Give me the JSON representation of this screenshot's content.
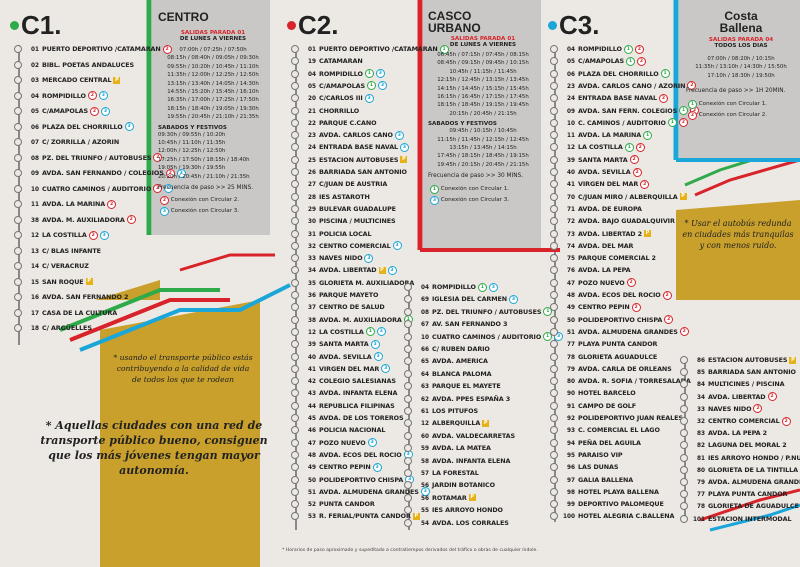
{
  "c1": {
    "title": "C1.",
    "color": "#2eaa4a",
    "stops": [
      {
        "n": "01",
        "name": "PUERTO DEPORTIVO /CATAMARAN",
        "b": [
          "2"
        ]
      },
      {
        "n": "02",
        "name": "BIBL. POETAS ANDALUCES",
        "b": []
      },
      {
        "n": "03",
        "name": "MERCADO CENTRAL",
        "b": [
          "P"
        ]
      },
      {
        "n": "04",
        "name": "ROMPIDILLO",
        "b": [
          "2",
          "3"
        ]
      },
      {
        "n": "05",
        "name": "C/AMAPOLAS",
        "b": [
          "2",
          "3"
        ]
      },
      {
        "n": "06",
        "name": "PLAZA DEL CHORRILLO",
        "b": [
          "3"
        ]
      },
      {
        "n": "07",
        "name": "C/ ZORRILLA / AZORIN",
        "b": []
      },
      {
        "n": "08",
        "name": "PZ. DEL TRIUNFO / AUTOBUSES",
        "b": [
          "2"
        ]
      },
      {
        "n": "09",
        "name": "AVDA. SAN FERNANDO / COLEGIOS",
        "b": [
          "2",
          "3"
        ]
      },
      {
        "n": "10",
        "name": "CUATRO CAMINOS / AUDITORIO",
        "b": [
          "2",
          "3"
        ]
      },
      {
        "n": "11",
        "name": "AVDA. LA MARINA",
        "b": [
          "2"
        ]
      },
      {
        "n": "38",
        "name": "AVDA. M. AUXILIADORA",
        "b": [
          "2"
        ]
      },
      {
        "n": "12",
        "name": "LA COSTILLA",
        "b": [
          "2",
          "3"
        ]
      },
      {
        "n": "13",
        "name": "C/ BLAS INFANTE",
        "b": []
      },
      {
        "n": "14",
        "name": "C/ VERACRUZ",
        "b": []
      },
      {
        "n": "15",
        "name": "SAN ROQUE",
        "b": [
          "P"
        ]
      },
      {
        "n": "16",
        "name": "AVDA. SAN FERNANDO 2",
        "b": []
      },
      {
        "n": "17",
        "name": "CASA DE LA CULTURA",
        "b": []
      },
      {
        "n": "18",
        "name": "C/ ARGÜELLES",
        "b": []
      }
    ]
  },
  "panel1": {
    "title": "CENTRO",
    "sub1": "SALIDAS PARADA 01",
    "sub2": "DE LUNES A VIERNES",
    "weekday": [
      "07:00h / 07:25h / 07:50h",
      "08:15h / 08:40h / 09:05h / 09:30h",
      "09:55h / 10:20h / 10:45h / 11:10h",
      "11:35h / 12:00h / 12:25h / 12:50h",
      "13:15h / 13:40h / 14:05h / 14:30h",
      "14:55h / 15:20h / 15:45h / 16:10h",
      "16:35h / 17:00h / 17:25h / 17:50h",
      "18:15h / 18:40h / 19:05h / 19:30h",
      "19:55h / 20:45h / 21:10h / 21:35h"
    ],
    "sub3": "SABADOS Y FESTIVOS",
    "weekend": [
      "09:30h / 09:55h / 10:20h",
      "10:45h / 11:10h / 11:35h",
      "12:00h / 12:25h / 12:50h",
      "17:25h / 17:50h / 18:15h / 18:40h",
      "19:05h / 19:30h / 19:55h",
      "20:20h / 20:45h / 21:10h / 21:35h"
    ],
    "freq": "Frecuencia de paso >> 25 MINS.",
    "conn_a": "Conexión con Circular 2.",
    "conn_b": "Conexión con Circular 3."
  },
  "c2": {
    "title": "C2.",
    "color": "#d8232a",
    "stops_left": [
      {
        "n": "01",
        "name": "PUERTO DEPORTIVO /CATAMARAN",
        "b": [
          "1"
        ]
      },
      {
        "n": "19",
        "name": "CATAMARAN",
        "b": []
      },
      {
        "n": "04",
        "name": "ROMPIDILLO",
        "b": [
          "1",
          "3"
        ]
      },
      {
        "n": "05",
        "name": "C/AMAPOLAS",
        "b": [
          "1",
          "3"
        ]
      },
      {
        "n": "20",
        "name": "C/CARLOS III",
        "b": [
          "3"
        ]
      },
      {
        "n": "21",
        "name": "CHORRILLO",
        "b": []
      },
      {
        "n": "22",
        "name": "PARQUE C.CANO",
        "b": []
      },
      {
        "n": "23",
        "name": "AVDA. CARLOS CANO",
        "b": [
          "3"
        ]
      },
      {
        "n": "24",
        "name": "ENTRADA BASE NAVAL",
        "b": [
          "3"
        ]
      },
      {
        "n": "25",
        "name": "ESTACION AUTOBUSES",
        "b": [
          "P"
        ]
      },
      {
        "n": "26",
        "name": "BARRIADA SAN ANTONIO",
        "b": []
      },
      {
        "n": "27",
        "name": "C/JUAN DE AUSTRIA",
        "b": []
      },
      {
        "n": "28",
        "name": "IES ASTAROTH",
        "b": []
      },
      {
        "n": "29",
        "name": "BULEVAR GUADALUPE",
        "b": []
      },
      {
        "n": "30",
        "name": "PISCINA / MULTICINES",
        "b": []
      },
      {
        "n": "31",
        "name": "POLICIA LOCAL",
        "b": []
      },
      {
        "n": "32",
        "name": "CENTRO COMERCIAL",
        "b": [
          "3"
        ]
      },
      {
        "n": "33",
        "name": "NAVES NIDO",
        "b": [
          "3"
        ]
      },
      {
        "n": "34",
        "name": "AVDA. LIBERTAD",
        "b": [
          "P",
          "3"
        ]
      },
      {
        "n": "35",
        "name": "GLORIETA M. AUXILIADORA",
        "b": []
      },
      {
        "n": "36",
        "name": "PARQUE MAYETO",
        "b": []
      },
      {
        "n": "37",
        "name": "CENTRO DE SALUD",
        "b": []
      },
      {
        "n": "38",
        "name": "AVDA. M. AUXILIADORA",
        "b": [
          "1"
        ]
      },
      {
        "n": "12",
        "name": "LA COSTILLA",
        "b": [
          "1",
          "3"
        ]
      },
      {
        "n": "39",
        "name": "SANTA MARTA",
        "b": [
          "3"
        ]
      },
      {
        "n": "40",
        "name": "AVDA. SEVILLA",
        "b": [
          "3"
        ]
      },
      {
        "n": "41",
        "name": "VIRGEN DEL MAR",
        "b": [
          "3"
        ]
      },
      {
        "n": "42",
        "name": "COLEGIO SALESIANAS",
        "b": []
      },
      {
        "n": "43",
        "name": "AVDA. INFANTA ELENA",
        "b": []
      },
      {
        "n": "44",
        "name": "REPUBLICA FILIPINAS",
        "b": []
      },
      {
        "n": "45",
        "name": "AVDA. DE LOS TOREROS",
        "b": []
      },
      {
        "n": "46",
        "name": "POLICIA NACIONAL",
        "b": []
      },
      {
        "n": "47",
        "name": "POZO NUEVO",
        "b": [
          "3"
        ]
      },
      {
        "n": "48",
        "name": "AVDA. ECOS DEL ROCIO",
        "b": [
          "3"
        ]
      },
      {
        "n": "49",
        "name": "CENTRO PEPIN",
        "b": [
          "3"
        ]
      },
      {
        "n": "50",
        "name": "POLIDEPORTIVO CHISPA",
        "b": [
          "3"
        ]
      },
      {
        "n": "51",
        "name": "AVDA. ALMUDENA GRANDES",
        "b": [
          "3"
        ]
      },
      {
        "n": "52",
        "name": "PUNTA CANDOR",
        "b": []
      },
      {
        "n": "53",
        "name": "R. FERIAL/PUNTA CANDOR",
        "b": [
          "P"
        ]
      }
    ],
    "stops_right": [
      {
        "n": "04",
        "name": "ROMPIDILLO",
        "b": [
          "1",
          "3"
        ]
      },
      {
        "n": "69",
        "name": "IGLESIA DEL CARMEN",
        "b": [
          "3"
        ]
      },
      {
        "n": "08",
        "name": "PZ. DEL TRIUNFO / AUTOBUSES",
        "b": [
          "1"
        ]
      },
      {
        "n": "67",
        "name": "AV. SAN FERNANDO 3",
        "b": []
      },
      {
        "n": "10",
        "name": "CUATRO CAMINOS / AUDITORIO",
        "b": [
          "1",
          "3"
        ]
      },
      {
        "n": "66",
        "name": "C/ RUBEN DARIO",
        "b": []
      },
      {
        "n": "65",
        "name": "AVDA. AMERICA",
        "b": []
      },
      {
        "n": "64",
        "name": "BLANCA PALOMA",
        "b": []
      },
      {
        "n": "63",
        "name": "PARQUE EL MAYETE",
        "b": []
      },
      {
        "n": "62",
        "name": "AVDA. PPES ESPAÑA 3",
        "b": []
      },
      {
        "n": "61",
        "name": "LOS PITUFOS",
        "b": []
      },
      {
        "n": "12",
        "name": "ALBERQUILLA",
        "b": [
          "P"
        ]
      },
      {
        "n": "60",
        "name": "AVDA. VALDECARRETAS",
        "b": []
      },
      {
        "n": "59",
        "name": "AVDA. LA MATEA",
        "b": []
      },
      {
        "n": "58",
        "name": "AVDA. INFANTA ELENA",
        "b": []
      },
      {
        "n": "57",
        "name": "LA FORESTAL",
        "b": []
      },
      {
        "n": "56",
        "name": "JARDIN BOTANICO",
        "b": []
      },
      {
        "n": "56",
        "name": "ROTAMAR",
        "b": [
          "P"
        ]
      },
      {
        "n": "55",
        "name": "IES ARROYO HONDO",
        "b": []
      },
      {
        "n": "54",
        "name": "AVDA. LOS CORRALES",
        "b": []
      }
    ]
  },
  "panel2": {
    "title1": "CASCO",
    "title2": "URBANO",
    "sub1": "SALIDAS PARADA 01",
    "sub2": "DE LUNES A VIERNES",
    "weekday": [
      "06:45h / 07:15h / 07:45h / 08:15h",
      "08:45h / 09:15h / 09:45h / 10:15h",
      "10:45h / 11:15h / 11:45h",
      "12:15h / 12:45h / 13:15h / 13:45h",
      "14:15h / 14:45h / 15:15h / 15:45h",
      "16:15h / 16:45h / 17:15h / 17:45h",
      "18:15h / 18:45h / 19:15h / 19:45h",
      "20:15h / 20:45h / 21:15h"
    ],
    "sub3": "SABADOS Y FESTIVOS",
    "weekend": [
      "09:45h / 10:15h / 10:45h",
      "11:15h / 11:45h / 12:15h / 12:45h",
      "13:15h / 13:45h / 14:15h",
      "17:45h / 18:15h / 18:45h / 19:15h",
      "19:45h / 20:15h / 20:45h / 21:15h"
    ],
    "freq": "Frecuencia de paso >> 30 MINS.",
    "conn_a": "Conexión con Circular 1.",
    "conn_b": "Conexión con Circular 3."
  },
  "c3": {
    "title": "C3.",
    "color": "#1aa6d8",
    "stops_left": [
      {
        "n": "04",
        "name": "ROMPIDILLO",
        "b": [
          "1",
          "2"
        ]
      },
      {
        "n": "05",
        "name": "C/AMAPOLAS",
        "b": [
          "1",
          "2"
        ]
      },
      {
        "n": "06",
        "name": "PLAZA DEL CHORRILLO",
        "b": [
          "1"
        ]
      },
      {
        "n": "23",
        "name": "AVDA. CARLOS CANO / AZORIN",
        "b": [
          "2"
        ]
      },
      {
        "n": "24",
        "name": "ENTRADA BASE NAVAL",
        "b": [
          "2"
        ]
      },
      {
        "n": "09",
        "name": "AVDA. SAN FERN. COLEGIOS",
        "b": [
          "1",
          "2"
        ]
      },
      {
        "n": "10",
        "name": "C. CAMINOS / AUDITORIO",
        "b": [
          "1",
          "2"
        ]
      },
      {
        "n": "11",
        "name": "AVDA. LA MARINA",
        "b": [
          "1"
        ]
      },
      {
        "n": "12",
        "name": "LA COSTILLA",
        "b": [
          "1",
          "2"
        ]
      },
      {
        "n": "39",
        "name": "SANTA MARTA",
        "b": [
          "2"
        ]
      },
      {
        "n": "40",
        "name": "AVDA. SEVILLA",
        "b": [
          "2"
        ]
      },
      {
        "n": "41",
        "name": "VIRGEN DEL MAR",
        "b": [
          "2"
        ]
      },
      {
        "n": "70",
        "name": "C/JUAN MIRO / ALBERQUILLA",
        "b": [
          "P"
        ]
      },
      {
        "n": "71",
        "name": "AVDA. DE EUROPA",
        "b": []
      },
      {
        "n": "72",
        "name": "AVDA. BAJO GUADALQUIVIR",
        "b": []
      },
      {
        "n": "73",
        "name": "AVDA. LIBERTAD 2",
        "b": [
          "P"
        ]
      },
      {
        "n": "74",
        "name": "AVDA. DEL MAR",
        "b": []
      },
      {
        "n": "75",
        "name": "PARQUE COMERCIAL 2",
        "b": []
      },
      {
        "n": "76",
        "name": "AVDA. LA PEPA",
        "b": []
      },
      {
        "n": "47",
        "name": "POZO NUEVO",
        "b": [
          "2"
        ]
      },
      {
        "n": "48",
        "name": "AVDA. ECOS DEL ROCIO",
        "b": [
          "2"
        ]
      },
      {
        "n": "49",
        "name": "CENTRO PEPIN",
        "b": [
          "2"
        ]
      },
      {
        "n": "50",
        "name": "POLIDEPORTIVO CHISPA",
        "b": [
          "2"
        ]
      },
      {
        "n": "51",
        "name": "AVDA. ALMUDENA GRANDES",
        "b": [
          "2"
        ]
      },
      {
        "n": "77",
        "name": "PLAYA PUNTA CANDOR",
        "b": []
      },
      {
        "n": "78",
        "name": "GLORIETA AGUADULCE",
        "b": []
      },
      {
        "n": "79",
        "name": "AVDA. CARLA DE ORLEANS",
        "b": []
      },
      {
        "n": "80",
        "name": "AVDA. R. SOFIA / TORRESALADA",
        "b": []
      },
      {
        "n": "90",
        "name": "HOTEL BARCELO",
        "b": []
      },
      {
        "n": "91",
        "name": "CAMPO DE GOLF",
        "b": []
      },
      {
        "n": "92",
        "name": "POLIDEPORTIVO JUAN REALES",
        "b": []
      },
      {
        "n": "93",
        "name": "C. COMERCIAL EL LAGO",
        "b": []
      },
      {
        "n": "94",
        "name": "PEÑA DEL AGUILA",
        "b": []
      },
      {
        "n": "95",
        "name": "PARAISO VIP",
        "b": []
      },
      {
        "n": "96",
        "name": "LAS DUNAS",
        "b": []
      },
      {
        "n": "97",
        "name": "GALIA BALLENA",
        "b": []
      },
      {
        "n": "98",
        "name": "HOTEL PLAYA BALLENA",
        "b": []
      },
      {
        "n": "99",
        "name": "DEPORTIVO PALOMEQUE",
        "b": []
      },
      {
        "n": "100",
        "name": "HOTEL ALEGRIA C.BALLENA",
        "b": []
      }
    ],
    "stops_right": [
      {
        "n": "86",
        "name": "ESTACION AUTOBUSES",
        "b": [
          "P"
        ]
      },
      {
        "n": "85",
        "name": "BARRIADA SAN ANTONIO",
        "b": []
      },
      {
        "n": "84",
        "name": "MULTICINES / PISCINA",
        "b": []
      },
      {
        "n": "34",
        "name": "AVDA. LIBERTAD",
        "b": [
          "2"
        ]
      },
      {
        "n": "33",
        "name": "NAVES NIDO",
        "b": [
          "2"
        ]
      },
      {
        "n": "32",
        "name": "CENTRO COMERCIAL",
        "b": [
          "2"
        ]
      },
      {
        "n": "83",
        "name": "AVDA. LA PEPA 2",
        "b": []
      },
      {
        "n": "82",
        "name": "LAGUNA DEL MORAL 2",
        "b": []
      },
      {
        "n": "81",
        "name": "IES ARROYO HONDO / P.NUEVO",
        "b": []
      },
      {
        "n": "80",
        "name": "GLORIETA DE LA TINTILLA",
        "b": []
      },
      {
        "n": "79",
        "name": "AVDA. ALMUDENA GRANDES 2",
        "b": []
      },
      {
        "n": "77",
        "name": "PLAYA PUNTA CANDOR",
        "b": []
      },
      {
        "n": "78",
        "name": "GLORIETA DE AGUADULCE",
        "b": []
      },
      {
        "n": "101",
        "name": "ESTACION INTERMODAL",
        "b": []
      }
    ]
  },
  "panel3": {
    "title1": "Costa",
    "title2": "Ballena",
    "sub1": "SALIDAS PARADA 04",
    "sub2": "TODOS LOS DIAS",
    "weekday": [
      "07:00h / 08:20h / 10:15h",
      "11:35h / 13:10h / 14:30h / 15:50h",
      "17:10h / 18:30h / 19:50h"
    ],
    "freq": "Frecuencia de paso >> 1H 20MIN.",
    "conn_a": "Conexión con Circular 1.",
    "conn_b": "Conexión con Circular 2."
  },
  "notes": {
    "left_small": "* usando el transporte público estás contribuyendo a la calidad de vida de todos los que te rodean",
    "left_big": "* Aquellas ciudades con una red de transporte público bueno, consiguen que los más jóvenes tengan mayor autonomía.",
    "right_small": "* Usar el autobús redunda en ciudades más tranquilas y con menos ruido.",
    "footnote": "* Horarios de paso aproximado y supeditado a contratiempos derivados del tráfico o obras de cualquier índole."
  }
}
